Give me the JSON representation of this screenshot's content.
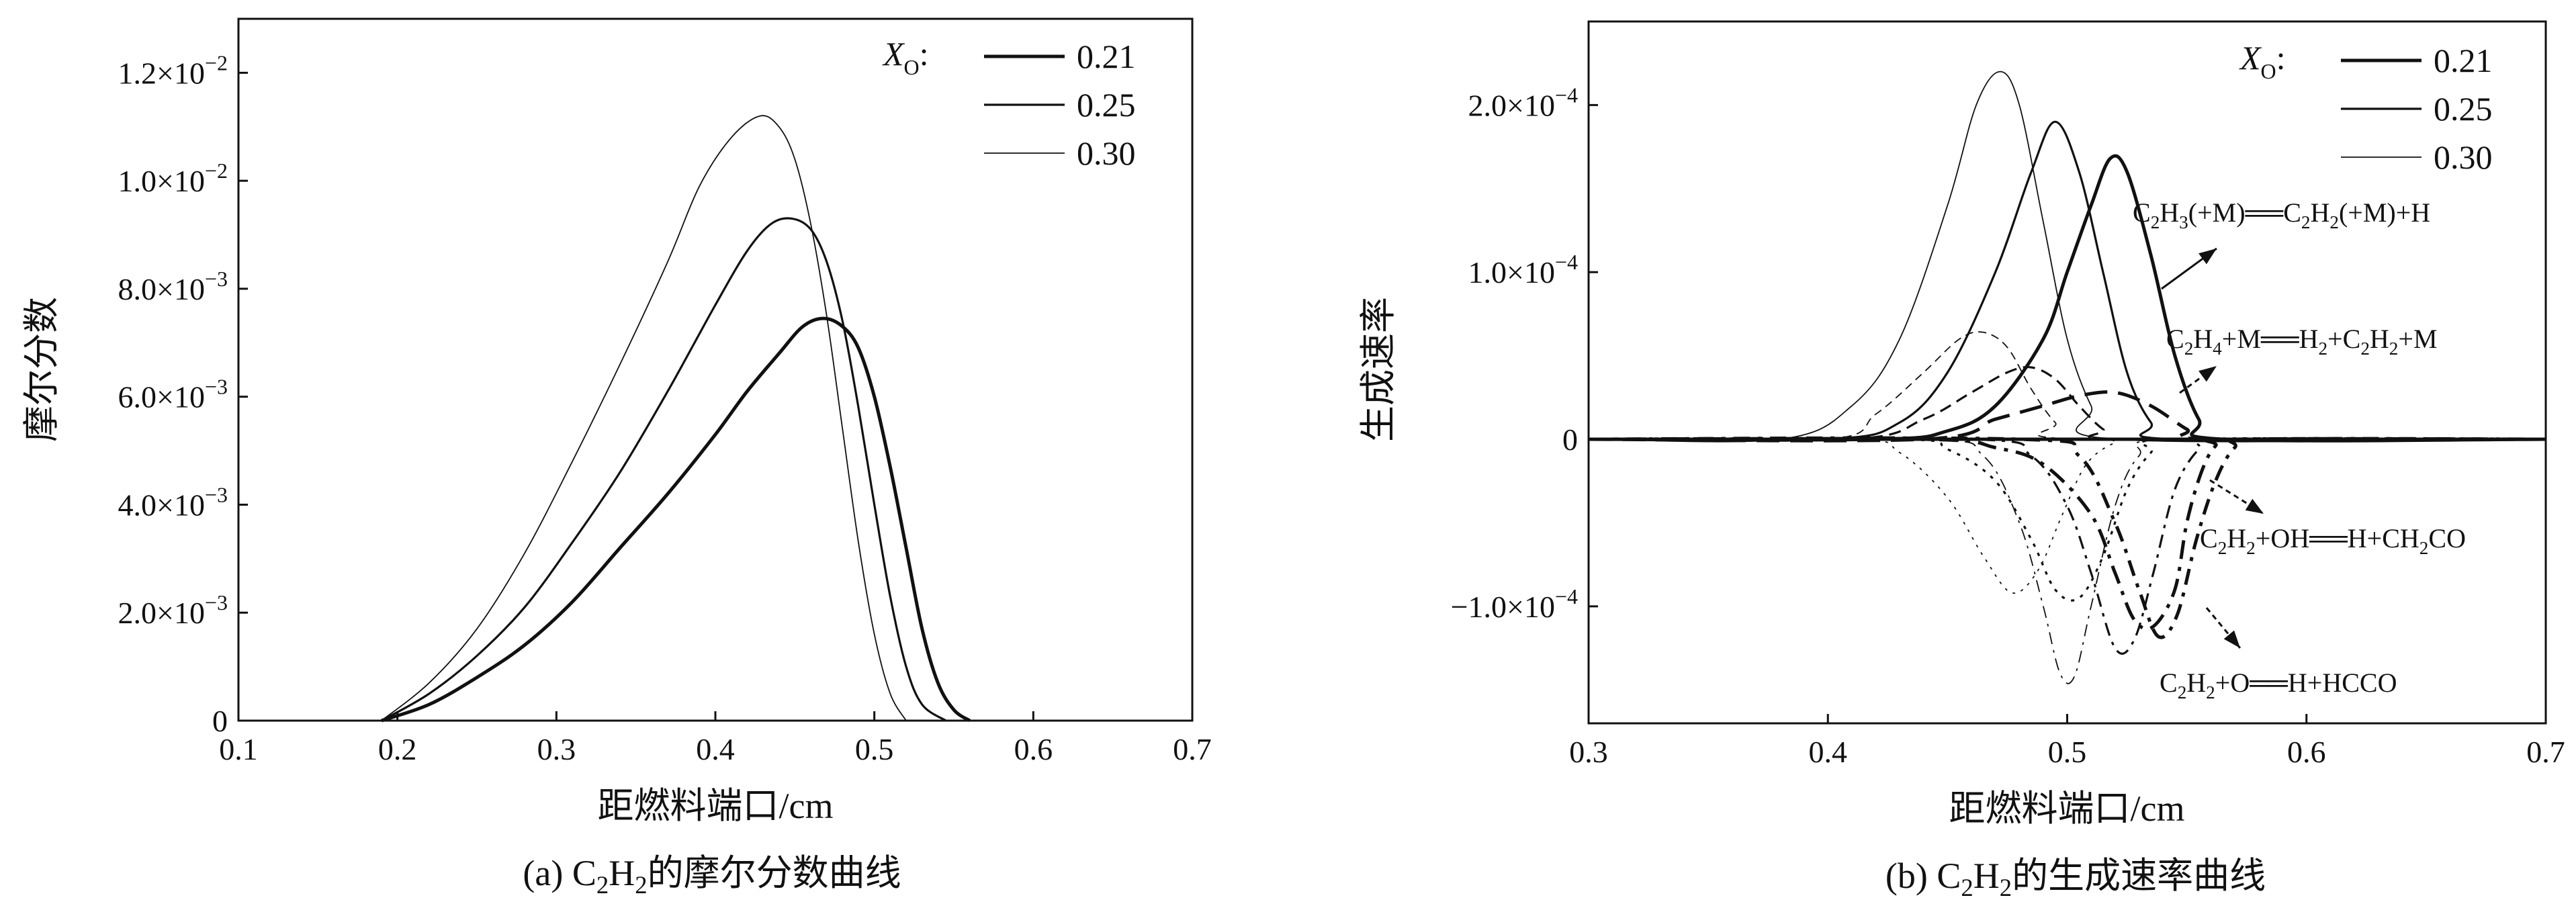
{
  "caption_left": {
    "main": "(a) C",
    "s1": "2",
    "mid": "H",
    "s2": "2",
    "tail": "的摩尔分数曲线"
  },
  "caption_right": {
    "main": "(b) C",
    "s1": "2",
    "mid": "H",
    "s2": "2",
    "tail": "的生成速率曲线"
  },
  "chart_data": [
    {
      "type": "line",
      "title": "",
      "xlabel": "距燃料端口/cm",
      "ylabel": "摩尔分数",
      "xlim": [
        0.1,
        0.7
      ],
      "ylim": [
        0,
        0.013
      ],
      "xticks": [
        "0.1",
        "0.2",
        "0.3",
        "0.4",
        "0.5",
        "0.6",
        "0.7"
      ],
      "yticks": [
        {
          "value": 0,
          "mant": "0",
          "exp": ""
        },
        {
          "value": 0.002,
          "mant": "2.0×10",
          "exp": "−3"
        },
        {
          "value": 0.004,
          "mant": "4.0×10",
          "exp": "−3"
        },
        {
          "value": 0.006,
          "mant": "6.0×10",
          "exp": "−3"
        },
        {
          "value": 0.008,
          "mant": "8.0×10",
          "exp": "−3"
        },
        {
          "value": 0.01,
          "mant": "1.0×10",
          "exp": "−2"
        },
        {
          "value": 0.012,
          "mant": "1.2×10",
          "exp": "−2"
        }
      ],
      "legend": {
        "title_main": "X",
        "title_sub": "O",
        "title_colon": ":",
        "position": "top-right"
      },
      "series": [
        {
          "name": "0.21",
          "stroke": 5,
          "x": [
            0.19,
            0.22,
            0.25,
            0.28,
            0.31,
            0.34,
            0.37,
            0.4,
            0.42,
            0.44,
            0.455,
            0.468,
            0.48,
            0.49,
            0.5,
            0.51,
            0.52,
            0.53,
            0.54,
            0.55,
            0.56
          ],
          "y": [
            0,
            0.0003,
            0.0008,
            0.0014,
            0.0022,
            0.0032,
            0.0042,
            0.0053,
            0.0061,
            0.0068,
            0.0073,
            0.00745,
            0.0073,
            0.0069,
            0.006,
            0.0047,
            0.0032,
            0.0017,
            0.0007,
            0.0002,
            0
          ]
        },
        {
          "name": "0.25",
          "stroke": 3.2,
          "x": [
            0.19,
            0.22,
            0.25,
            0.28,
            0.31,
            0.34,
            0.37,
            0.4,
            0.42,
            0.435,
            0.448,
            0.46,
            0.47,
            0.48,
            0.49,
            0.5,
            0.51,
            0.52,
            0.53,
            0.545
          ],
          "y": [
            0,
            0.0005,
            0.0012,
            0.0021,
            0.0033,
            0.0046,
            0.0061,
            0.0077,
            0.0087,
            0.0092,
            0.0093,
            0.0091,
            0.0085,
            0.0074,
            0.0058,
            0.004,
            0.0023,
            0.001,
            0.0003,
            0
          ]
        },
        {
          "name": "0.30",
          "stroke": 1.8,
          "x": [
            0.19,
            0.22,
            0.25,
            0.28,
            0.31,
            0.34,
            0.37,
            0.39,
            0.41,
            0.428,
            0.44,
            0.45,
            0.46,
            0.47,
            0.48,
            0.49,
            0.5,
            0.51,
            0.52
          ],
          "y": [
            0,
            0.0007,
            0.0017,
            0.0031,
            0.0048,
            0.0066,
            0.0085,
            0.0099,
            0.0108,
            0.0112,
            0.011,
            0.0104,
            0.0092,
            0.0075,
            0.0054,
            0.0033,
            0.0016,
            0.0005,
            0
          ]
        }
      ]
    },
    {
      "type": "line",
      "title": "",
      "xlabel": "距燃料端口/cm",
      "ylabel": "生成速率",
      "xlim": [
        0.3,
        0.7
      ],
      "ylim": [
        -0.00017,
        0.00025
      ],
      "xticks": [
        "0.3",
        "0.4",
        "0.5",
        "0.6",
        "0.7"
      ],
      "yticks": [
        {
          "value": -0.0001,
          "mant": "−1.0×10",
          "exp": "−4"
        },
        {
          "value": 0,
          "mant": "0",
          "exp": ""
        },
        {
          "value": 0.0001,
          "mant": "1.0×10",
          "exp": "−4"
        },
        {
          "value": 0.0002,
          "mant": "2.0×10",
          "exp": "−4"
        }
      ],
      "legend": {
        "title_main": "X",
        "title_sub": "O",
        "title_colon": ":",
        "position": "top-right"
      },
      "legend_entries": [
        {
          "name": "0.21",
          "stroke": 5
        },
        {
          "name": "0.25",
          "stroke": 3.2
        },
        {
          "name": "0.30",
          "stroke": 1.8
        }
      ],
      "annotations": [
        {
          "parts": [
            "C",
            "2",
            "H",
            "3",
            "(+M)══C",
            "2",
            "H",
            "2",
            "(+M)+H"
          ],
          "reaction": "C2H3(+M)=C2H2(+M)+H"
        },
        {
          "parts": [
            "C",
            "2",
            "H",
            "4",
            "+M══H",
            "2",
            "+C",
            "2",
            "H",
            "2",
            "+M"
          ],
          "reaction": "C2H4+M=H2+C2H2+M"
        },
        {
          "parts": [
            "C",
            "2",
            "H",
            "2",
            "+OH══H+CH",
            "2",
            "CO"
          ],
          "reaction": "C2H2+OH=H+CH2CO"
        },
        {
          "parts": [
            "C",
            "2",
            "H",
            "2",
            "+O══H+HCCO"
          ],
          "reaction": "C2H2+O=H+HCCO"
        }
      ],
      "series": [
        {
          "reaction": "C2H3(+M)=C2H2(+M)+H",
          "xo": "0.21",
          "stroke": 5,
          "dash": "",
          "x": [
            0.3,
            0.42,
            0.45,
            0.47,
            0.49,
            0.5,
            0.51,
            0.518,
            0.525,
            0.535,
            0.545,
            0.555,
            0.565,
            0.7
          ],
          "y": [
            0,
            0,
            5e-06,
            2e-05,
            6e-05,
            0.0001,
            0.00014,
            0.000168,
            0.00016,
            0.00011,
            5e-05,
            1.2e-05,
            0,
            0
          ]
        },
        {
          "reaction": "C2H3(+M)=C2H2(+M)+H",
          "xo": "0.25",
          "stroke": 3.2,
          "dash": "",
          "x": [
            0.3,
            0.4,
            0.43,
            0.45,
            0.47,
            0.485,
            0.495,
            0.505,
            0.515,
            0.525,
            0.535,
            0.545,
            0.7
          ],
          "y": [
            0,
            0,
            1e-05,
            4e-05,
            0.0001,
            0.00016,
            0.00019,
            0.00016,
            0.0001,
            4e-05,
            1e-05,
            0,
            0
          ]
        },
        {
          "reaction": "C2H3(+M)=C2H2(+M)+H",
          "xo": "0.30",
          "stroke": 1.8,
          "dash": "",
          "x": [
            0.3,
            0.38,
            0.41,
            0.43,
            0.45,
            0.462,
            0.472,
            0.48,
            0.49,
            0.5,
            0.51,
            0.52,
            0.7
          ],
          "y": [
            0,
            0,
            2e-05,
            6e-05,
            0.00014,
            0.0002,
            0.00022,
            0.0002,
            0.00013,
            6e-05,
            2e-05,
            0,
            0
          ]
        },
        {
          "reaction": "C2H4+M=H2+C2H2+M",
          "xo": "0.21",
          "stroke": 5,
          "dash": "34,16",
          "x": [
            0.3,
            0.44,
            0.47,
            0.49,
            0.505,
            0.52,
            0.535,
            0.55,
            0.56,
            0.7
          ],
          "y": [
            0,
            0,
            1.2e-05,
            2e-05,
            2.6e-05,
            2.8e-05,
            2e-05,
            6e-06,
            0,
            0
          ]
        },
        {
          "reaction": "C2H4+M=H2+C2H2+M",
          "xo": "0.25",
          "stroke": 3.2,
          "dash": "18,10",
          "x": [
            0.3,
            0.41,
            0.44,
            0.46,
            0.475,
            0.485,
            0.495,
            0.505,
            0.515,
            0.525,
            0.7
          ],
          "y": [
            0,
            0,
            1.2e-05,
            2.8e-05,
            4e-05,
            4.3e-05,
            3.6e-05,
            2e-05,
            6e-06,
            0,
            0
          ]
        },
        {
          "reaction": "C2H4+M=H2+C2H2+M",
          "xo": "0.30",
          "stroke": 1.8,
          "dash": "12,8",
          "x": [
            0.3,
            0.4,
            0.42,
            0.44,
            0.455,
            0.465,
            0.475,
            0.485,
            0.495,
            0.505,
            0.7
          ],
          "y": [
            0,
            0,
            1.5e-05,
            4e-05,
            6e-05,
            6.4e-05,
            5.5e-05,
            3e-05,
            1e-05,
            0,
            0
          ]
        },
        {
          "reaction": "C2H2+OH=H+CH2CO",
          "xo": "0.21",
          "stroke": 5,
          "dash": "28,12,6,12",
          "x": [
            0.3,
            0.44,
            0.47,
            0.49,
            0.51,
            0.52,
            0.528,
            0.536,
            0.545,
            0.55,
            0.556,
            0.562,
            0.57,
            0.7
          ],
          "y": [
            0,
            0,
            -5e-06,
            -1.5e-05,
            -4.5e-05,
            -8e-05,
            -0.000108,
            -0.000112,
            -9e-05,
            -5e-05,
            -2e-05,
            -4e-06,
            0,
            0
          ]
        },
        {
          "reaction": "C2H2+OH=H+CH2CO",
          "xo": "0.25",
          "stroke": 3.2,
          "dash": "5,10",
          "x": [
            0.3,
            0.43,
            0.45,
            0.47,
            0.485,
            0.495,
            0.505,
            0.515,
            0.525,
            0.535,
            0.545,
            0.7
          ],
          "y": [
            0,
            0,
            -6e-06,
            -2.5e-05,
            -6e-05,
            -9e-05,
            -9.5e-05,
            -7e-05,
            -3e-05,
            -8e-06,
            0,
            0
          ]
        },
        {
          "reaction": "C2H2+OH=H+CH2CO",
          "xo": "0.30",
          "stroke": 1.8,
          "dash": "4,9",
          "x": [
            0.3,
            0.41,
            0.43,
            0.45,
            0.465,
            0.477,
            0.488,
            0.498,
            0.508,
            0.52,
            0.53,
            0.7
          ],
          "y": [
            0,
            0,
            -8e-06,
            -3.5e-05,
            -7e-05,
            -9.2e-05,
            -7.8e-05,
            -4.5e-05,
            -1.5e-05,
            -2e-06,
            0,
            0
          ]
        },
        {
          "reaction": "C2H2+O=H+HCCO",
          "xo": "0.21",
          "stroke": 5,
          "dash": "24,12,6,12",
          "x": [
            0.3,
            0.48,
            0.505,
            0.52,
            0.53,
            0.538,
            0.546,
            0.554,
            0.562,
            0.57,
            0.58,
            0.7
          ],
          "y": [
            0,
            0,
            -1e-05,
            -5e-05,
            -9e-05,
            -0.000118,
            -0.000105,
            -6e-05,
            -2.5e-05,
            -5e-06,
            0,
            0
          ]
        },
        {
          "reaction": "C2H2+O=H+HCCO",
          "xo": "0.25",
          "stroke": 3.2,
          "dash": "20,10,5,10",
          "x": [
            0.3,
            0.46,
            0.485,
            0.5,
            0.51,
            0.52,
            0.528,
            0.536,
            0.545,
            0.555,
            0.565,
            0.7
          ],
          "y": [
            0,
            0,
            -1e-05,
            -4e-05,
            -8e-05,
            -0.000125,
            -0.00012,
            -8e-05,
            -3e-05,
            -6e-06,
            0,
            0
          ]
        },
        {
          "reaction": "C2H2+O=H+HCCO",
          "xo": "0.30",
          "stroke": 1.8,
          "dash": "18,9,4,9",
          "x": [
            0.3,
            0.44,
            0.465,
            0.48,
            0.49,
            0.497,
            0.503,
            0.51,
            0.52,
            0.53,
            0.545,
            0.7
          ],
          "y": [
            0,
            0,
            -1e-05,
            -5e-05,
            -0.0001,
            -0.00014,
            -0.000142,
            -0.0001,
            -4e-05,
            -1e-05,
            0,
            0
          ]
        }
      ]
    }
  ]
}
